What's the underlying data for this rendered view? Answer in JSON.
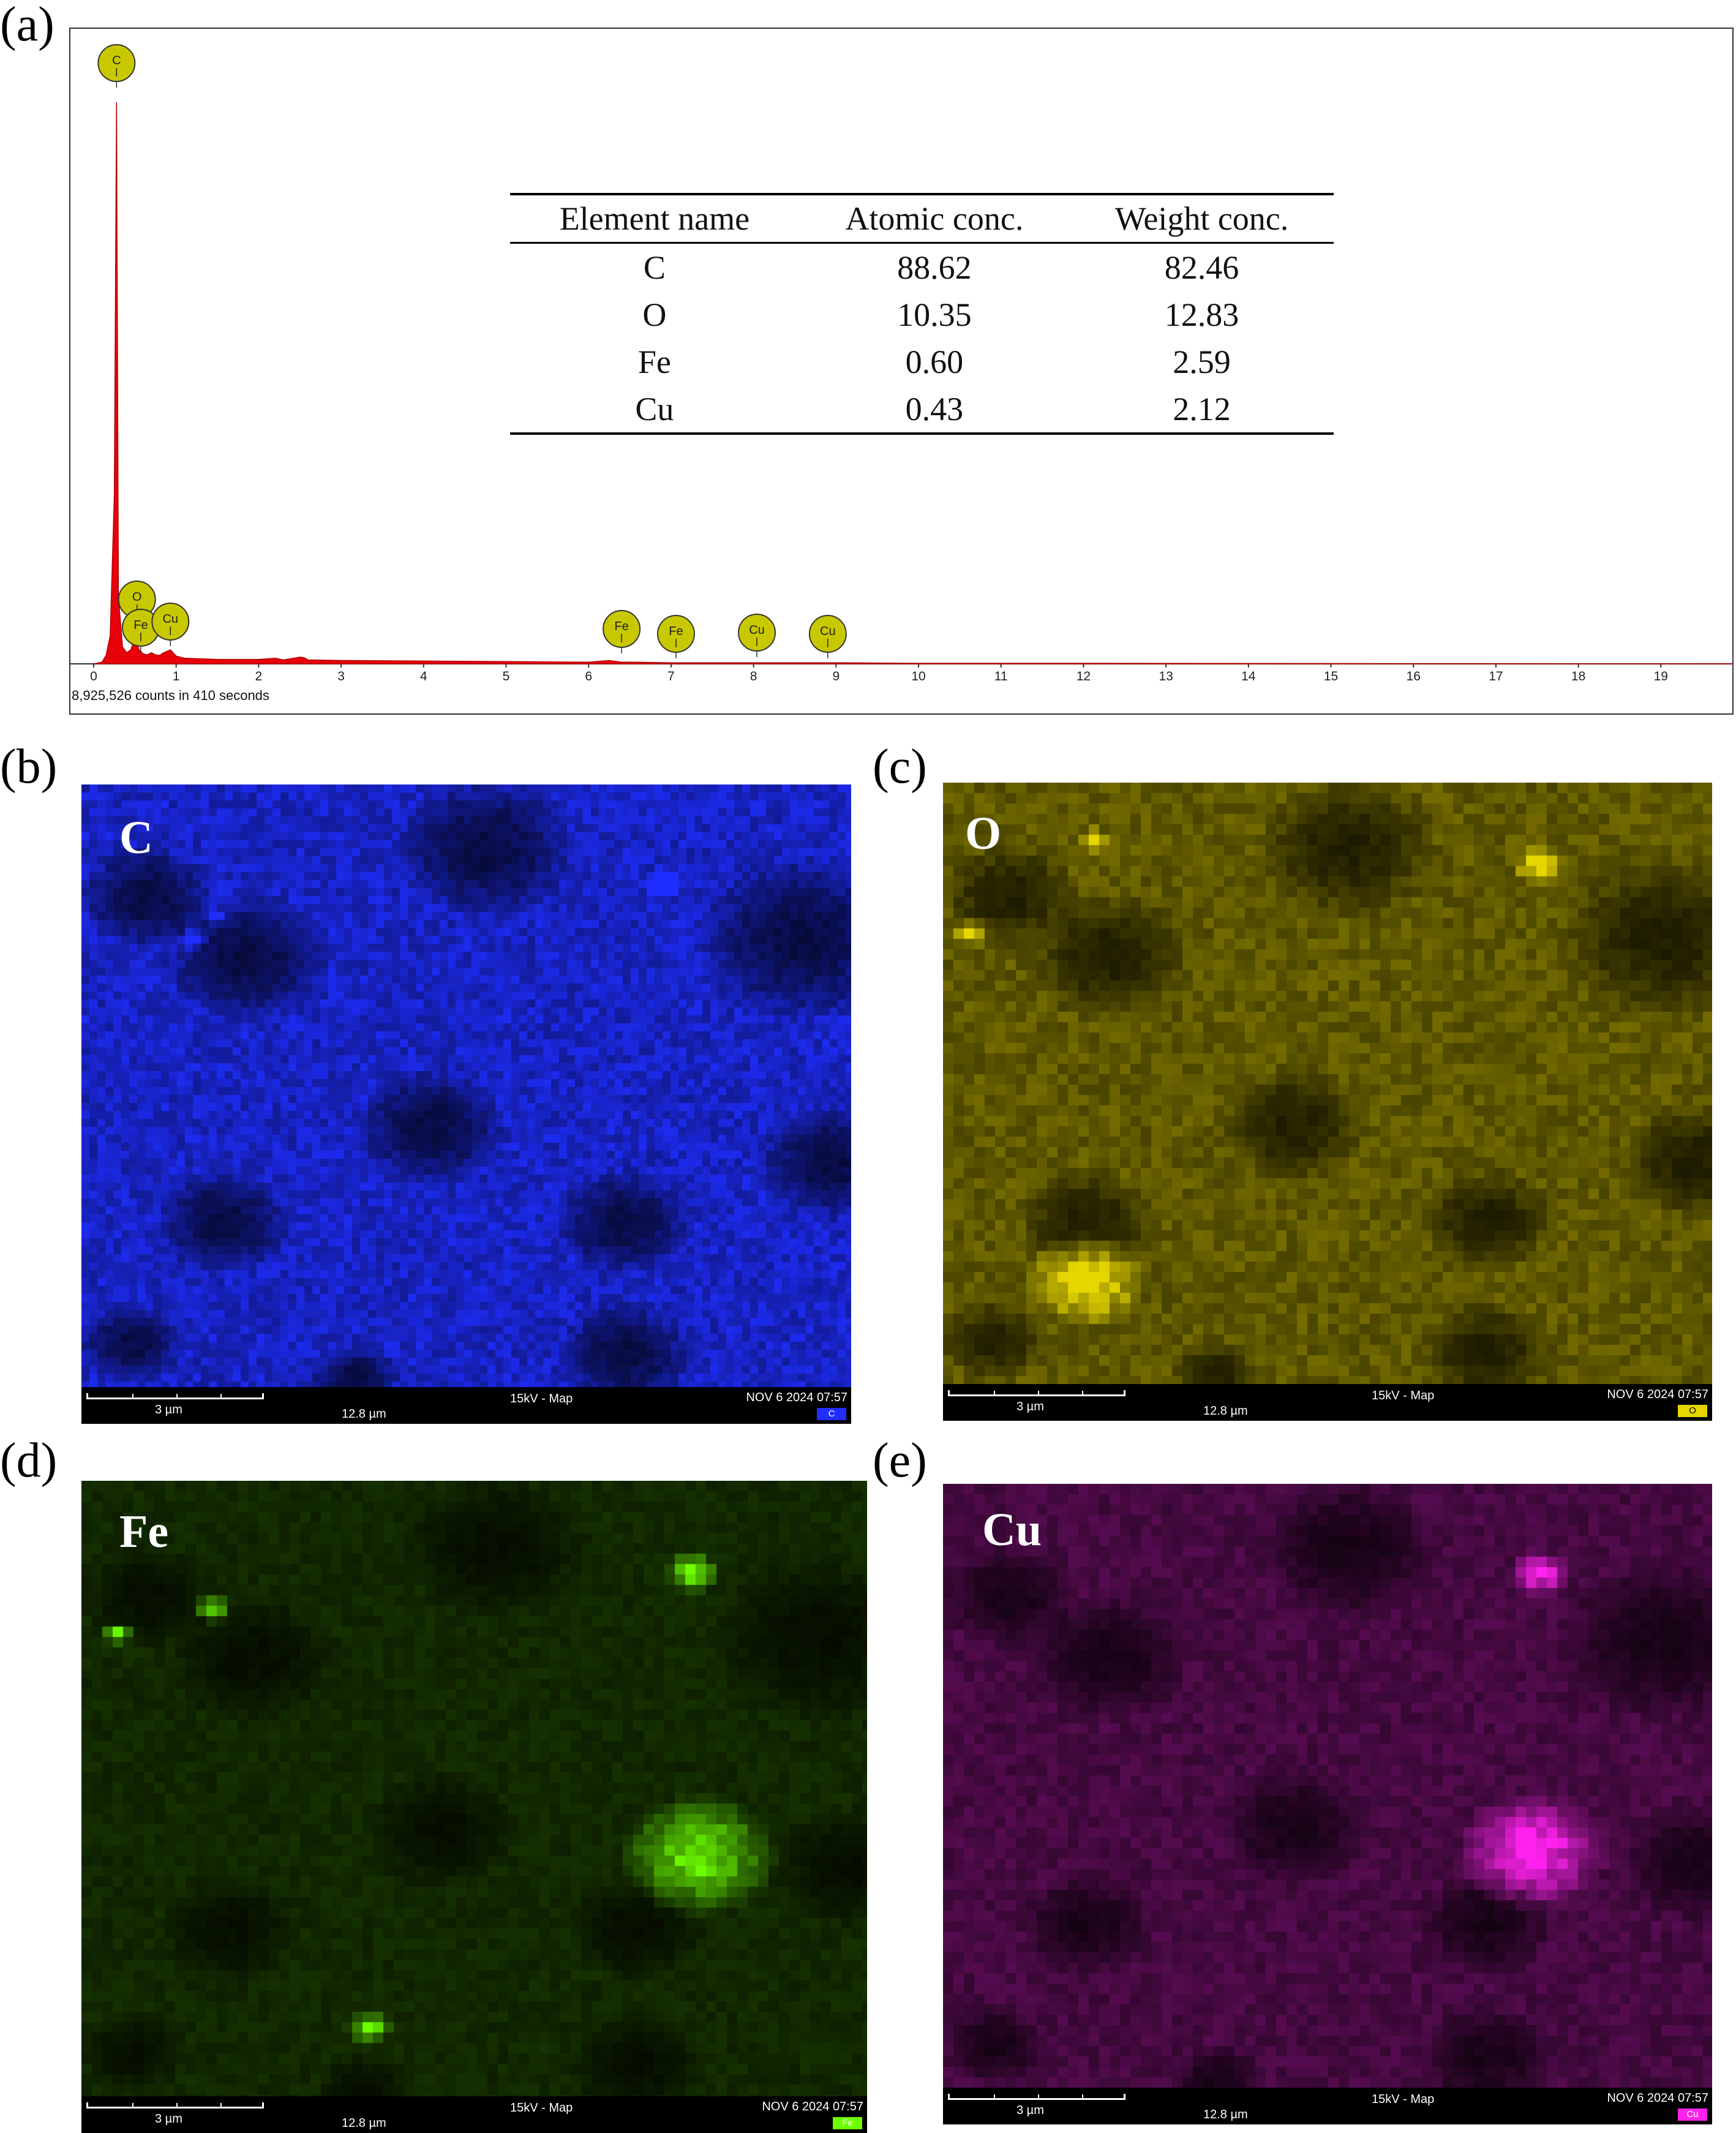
{
  "panel_labels": {
    "a": "(a)",
    "b": "(b)",
    "c": "(c)",
    "d": "(d)",
    "e": "(e)"
  },
  "chart_data": {
    "type": "line",
    "title": "",
    "xlabel": "",
    "ylabel": "",
    "xlim": [
      0,
      20
    ],
    "x_ticks": [
      "0",
      "1",
      "2",
      "3",
      "4",
      "5",
      "6",
      "7",
      "8",
      "9",
      "10",
      "11",
      "12",
      "13",
      "14",
      "15",
      "16",
      "17",
      "18",
      "19"
    ],
    "grid": false,
    "fill_color": "#e8000b",
    "marker_color": "#c8c800",
    "counts_note": "8,925,526 counts in 410 seconds",
    "series": [
      {
        "x": [
          0.0,
          0.1,
          0.15,
          0.2,
          0.25,
          0.277,
          0.3,
          0.35,
          0.4,
          0.45,
          0.5,
          0.52,
          0.55,
          0.6,
          0.65,
          0.7,
          0.75,
          0.8,
          0.85,
          0.93,
          1.0,
          1.1,
          1.5,
          2.0,
          2.2,
          2.3,
          2.5,
          2.55,
          2.6,
          3.0,
          4.0,
          5.0,
          6.0,
          6.25,
          6.4,
          6.55,
          7.0,
          8.0,
          9.0,
          10.0,
          12.0,
          15.0,
          20.0
        ],
        "y": [
          0.0,
          0.3,
          1.5,
          5.0,
          30.0,
          100.0,
          12.0,
          3.0,
          2.0,
          2.5,
          4.6,
          4.0,
          2.5,
          1.8,
          1.6,
          2.0,
          1.6,
          1.5,
          2.0,
          2.5,
          1.4,
          1.0,
          0.8,
          0.8,
          1.0,
          0.7,
          1.2,
          1.1,
          0.7,
          0.6,
          0.5,
          0.4,
          0.3,
          0.6,
          0.3,
          0.3,
          0.2,
          0.2,
          0.2,
          0.1,
          0.1,
          0.05,
          0.0
        ]
      }
    ],
    "peak_markers": [
      {
        "element": "C",
        "energy": 0.277
      },
      {
        "element": "O",
        "energy": 0.525
      },
      {
        "element": "Fe",
        "energy": 0.705
      },
      {
        "element": "Cu",
        "energy": 0.93
      },
      {
        "element": "Fe",
        "energy": 6.4
      },
      {
        "element": "Fe",
        "energy": 7.06
      },
      {
        "element": "Cu",
        "energy": 8.04
      },
      {
        "element": "Cu",
        "energy": 8.9
      }
    ]
  },
  "composition_table": {
    "headers": [
      "Element name",
      "Atomic conc.",
      "Weight conc."
    ],
    "rows": [
      [
        "C",
        "88.62",
        "82.46"
      ],
      [
        "O",
        "10.35",
        "12.83"
      ],
      [
        "Fe",
        "0.60",
        "2.59"
      ],
      [
        "Cu",
        "0.43",
        "2.12"
      ]
    ]
  },
  "maps": [
    {
      "label": "C",
      "color": "#1f2eff",
      "scale_text": "3 µm",
      "field_text": "12.8 µm",
      "mode_text": "15kV - Map",
      "date_text": "NOV 6 2024 07:57",
      "badge": "C"
    },
    {
      "label": "O",
      "color": "#e6d600",
      "scale_text": "3 µm",
      "field_text": "12.8 µm",
      "mode_text": "15kV - Map",
      "date_text": "NOV 6 2024 07:57",
      "badge": "O"
    },
    {
      "label": "Fe",
      "color": "#6cff00",
      "scale_text": "3 µm",
      "field_text": "12.8 µm",
      "mode_text": "15kV - Map",
      "date_text": "NOV 6 2024 07:57",
      "badge": "Fe"
    },
    {
      "label": "Cu",
      "color": "#ff22ee",
      "scale_text": "3 µm",
      "field_text": "12.8 µm",
      "mode_text": "15kV - Map",
      "date_text": "NOV 6 2024 07:57",
      "badge": "Cu"
    }
  ]
}
